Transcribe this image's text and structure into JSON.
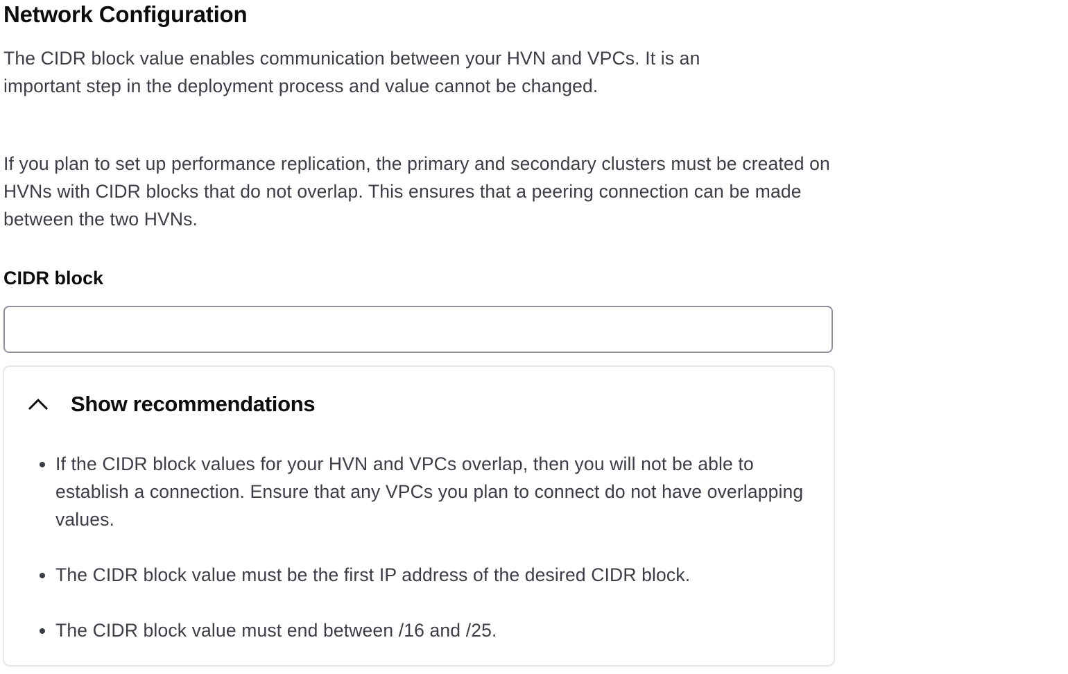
{
  "header": {
    "title": "Network Configuration"
  },
  "intro": [
    "The CIDR block value enables communication between your HVN and VPCs. It is an important step in the deployment process and value cannot be changed.",
    "If you plan to set up performance replication, the primary and secondary clusters must be created on HVNs with CIDR blocks that do not overlap. This ensures that a peering connection can be made between the two HVNs."
  ],
  "cidr": {
    "label": "CIDR block",
    "value": ""
  },
  "recommendations": {
    "toggle_label": "Show recommendations",
    "toggle_icon": "chevron-up-icon",
    "expanded": true,
    "items": [
      "If the CIDR block values for your HVN and VPCs overlap, then you will not be able to establish a connection. Ensure that any VPCs you plan to connect do not have overlapping values.",
      "The CIDR block value must be the first IP address of the desired CIDR block.",
      "The CIDR block value must end between /16 and /25."
    ]
  }
}
